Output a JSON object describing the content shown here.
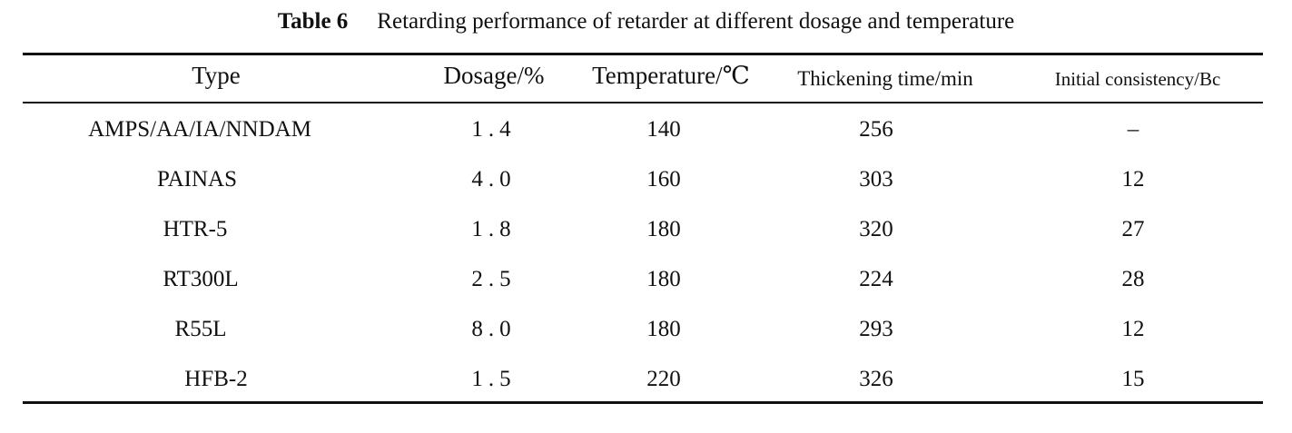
{
  "caption": {
    "label": "Table 6",
    "text": "Retarding performance of retarder at different dosage and temperature"
  },
  "table": {
    "headers": [
      "Type",
      "Dosage/%",
      "Temperature/℃",
      "Thickening time/min",
      "Initial consistency/Bc"
    ],
    "rows": [
      [
        "AMPS/AA/IA/NNDAM",
        "1.4",
        "140",
        "256",
        "–"
      ],
      [
        "PAINAS",
        "4.0",
        "160",
        "303",
        "12"
      ],
      [
        "HTR-5",
        "1.8",
        "180",
        "320",
        "27"
      ],
      [
        "RT300L",
        "2.5",
        "180",
        "224",
        "28"
      ],
      [
        "R55L",
        "8.0",
        "180",
        "293",
        "12"
      ],
      [
        "HFB-2",
        "1.5",
        "220",
        "326",
        "15"
      ]
    ]
  }
}
